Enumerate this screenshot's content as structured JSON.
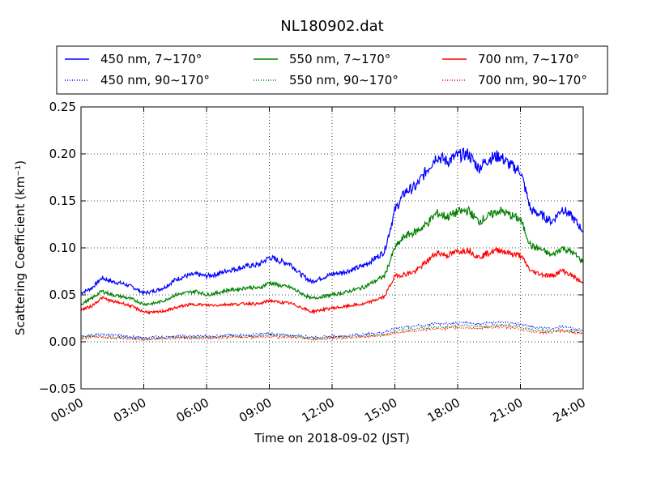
{
  "chart_data": {
    "type": "line",
    "title": "NL180902.dat",
    "xlabel": "Time on 2018-09-02 (JST)",
    "ylabel": "Scattering Coefficient (km⁻¹)",
    "xlim": [
      0,
      24
    ],
    "ylim": [
      -0.05,
      0.25
    ],
    "x_ticks": [
      0,
      3,
      6,
      9,
      12,
      15,
      18,
      21,
      24
    ],
    "x_tick_labels": [
      "00:00",
      "03:00",
      "06:00",
      "09:00",
      "12:00",
      "15:00",
      "18:00",
      "21:00",
      "24:00"
    ],
    "y_ticks": [
      -0.05,
      0.0,
      0.05,
      0.1,
      0.15,
      0.2,
      0.25
    ],
    "y_tick_labels": [
      "−0.05",
      "0.00",
      "0.05",
      "0.10",
      "0.15",
      "0.20",
      "0.25"
    ],
    "grid": true,
    "legend_placement": "top",
    "x_unit": "hours",
    "x": [
      0,
      0.5,
      1,
      1.5,
      2,
      2.5,
      3,
      3.5,
      4,
      4.5,
      5,
      5.5,
      6,
      6.5,
      7,
      7.5,
      8,
      8.5,
      9,
      9.5,
      10,
      10.5,
      11,
      11.5,
      12,
      12.5,
      13,
      13.5,
      14,
      14.5,
      15,
      15.5,
      16,
      16.5,
      17,
      17.5,
      18,
      18.5,
      19,
      19.5,
      20,
      20.5,
      21,
      21.5,
      22,
      22.5,
      23,
      23.5,
      24
    ],
    "series": [
      {
        "name": "450 nm, 7∼170°",
        "color": "#0000ff",
        "style": "solid",
        "values": [
          0.052,
          0.057,
          0.068,
          0.064,
          0.062,
          0.058,
          0.052,
          0.054,
          0.058,
          0.066,
          0.07,
          0.072,
          0.07,
          0.072,
          0.076,
          0.078,
          0.081,
          0.082,
          0.09,
          0.086,
          0.083,
          0.072,
          0.064,
          0.068,
          0.072,
          0.074,
          0.077,
          0.081,
          0.088,
          0.096,
          0.14,
          0.16,
          0.165,
          0.182,
          0.198,
          0.192,
          0.198,
          0.2,
          0.185,
          0.195,
          0.198,
          0.188,
          0.182,
          0.14,
          0.135,
          0.128,
          0.142,
          0.132,
          0.118
        ]
      },
      {
        "name": "450 nm, 90∼170°",
        "color": "#0000ff",
        "style": "dotted",
        "values": [
          0.006,
          0.007,
          0.008,
          0.007,
          0.006,
          0.005,
          0.004,
          0.005,
          0.005,
          0.006,
          0.006,
          0.006,
          0.006,
          0.006,
          0.007,
          0.007,
          0.007,
          0.008,
          0.009,
          0.008,
          0.007,
          0.006,
          0.005,
          0.005,
          0.006,
          0.006,
          0.007,
          0.008,
          0.009,
          0.01,
          0.014,
          0.016,
          0.017,
          0.018,
          0.02,
          0.019,
          0.02,
          0.021,
          0.019,
          0.02,
          0.021,
          0.02,
          0.019,
          0.016,
          0.015,
          0.014,
          0.016,
          0.014,
          0.012
        ]
      },
      {
        "name": "550 nm, 7∼170°",
        "color": "#008000",
        "style": "solid",
        "values": [
          0.04,
          0.046,
          0.054,
          0.05,
          0.048,
          0.045,
          0.04,
          0.041,
          0.044,
          0.05,
          0.052,
          0.054,
          0.05,
          0.052,
          0.055,
          0.056,
          0.058,
          0.057,
          0.063,
          0.06,
          0.058,
          0.052,
          0.046,
          0.048,
          0.05,
          0.052,
          0.055,
          0.058,
          0.064,
          0.07,
          0.1,
          0.113,
          0.117,
          0.125,
          0.137,
          0.133,
          0.138,
          0.14,
          0.128,
          0.134,
          0.14,
          0.135,
          0.13,
          0.102,
          0.098,
          0.092,
          0.1,
          0.095,
          0.085
        ]
      },
      {
        "name": "550 nm, 90∼170°",
        "color": "#008000",
        "style": "dotted",
        "values": [
          0.005,
          0.006,
          0.006,
          0.005,
          0.005,
          0.004,
          0.003,
          0.004,
          0.004,
          0.005,
          0.005,
          0.005,
          0.005,
          0.005,
          0.006,
          0.006,
          0.006,
          0.006,
          0.007,
          0.006,
          0.006,
          0.005,
          0.004,
          0.004,
          0.005,
          0.005,
          0.006,
          0.006,
          0.007,
          0.008,
          0.011,
          0.013,
          0.014,
          0.015,
          0.016,
          0.016,
          0.017,
          0.017,
          0.016,
          0.017,
          0.018,
          0.017,
          0.016,
          0.013,
          0.012,
          0.011,
          0.013,
          0.011,
          0.01
        ]
      },
      {
        "name": "700 nm, 7∼170°",
        "color": "#ff0000",
        "style": "solid",
        "values": [
          0.034,
          0.038,
          0.047,
          0.043,
          0.041,
          0.037,
          0.032,
          0.031,
          0.033,
          0.036,
          0.039,
          0.04,
          0.039,
          0.039,
          0.04,
          0.04,
          0.041,
          0.04,
          0.044,
          0.042,
          0.041,
          0.037,
          0.032,
          0.034,
          0.036,
          0.037,
          0.039,
          0.04,
          0.044,
          0.048,
          0.07,
          0.072,
          0.075,
          0.085,
          0.095,
          0.092,
          0.096,
          0.098,
          0.09,
          0.095,
          0.098,
          0.094,
          0.092,
          0.075,
          0.072,
          0.07,
          0.076,
          0.07,
          0.062
        ]
      },
      {
        "name": "700 nm, 90∼170°",
        "color": "#ff0000",
        "style": "dotted",
        "values": [
          0.004,
          0.005,
          0.005,
          0.004,
          0.004,
          0.003,
          0.002,
          0.003,
          0.003,
          0.004,
          0.004,
          0.004,
          0.004,
          0.004,
          0.005,
          0.005,
          0.005,
          0.005,
          0.006,
          0.005,
          0.005,
          0.004,
          0.003,
          0.003,
          0.004,
          0.004,
          0.005,
          0.005,
          0.006,
          0.007,
          0.009,
          0.011,
          0.012,
          0.013,
          0.014,
          0.014,
          0.015,
          0.015,
          0.014,
          0.015,
          0.016,
          0.015,
          0.014,
          0.011,
          0.01,
          0.01,
          0.011,
          0.01,
          0.009
        ]
      }
    ]
  }
}
